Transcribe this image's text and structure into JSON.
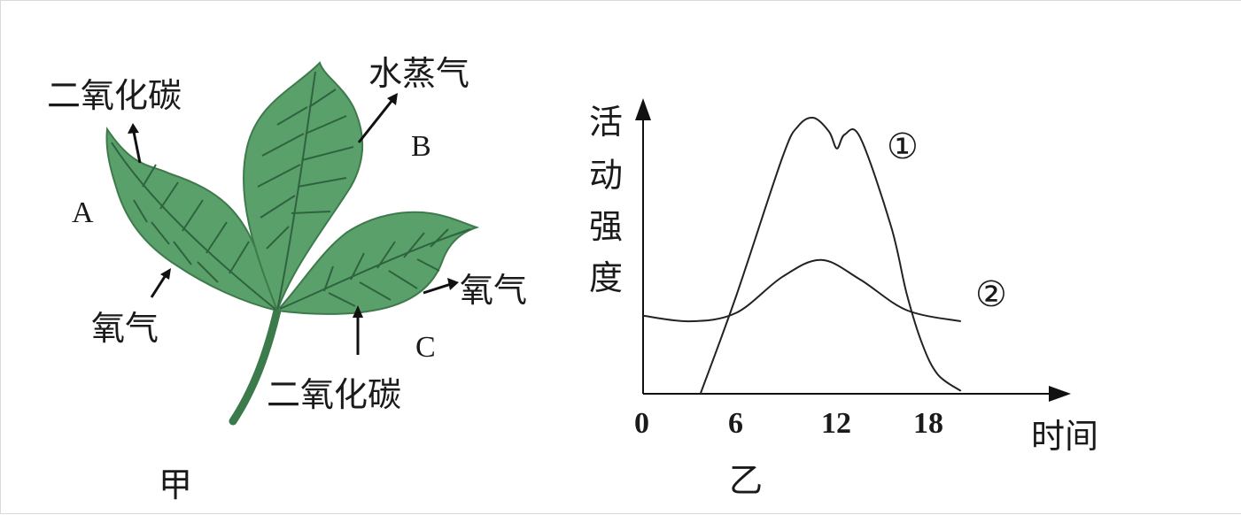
{
  "left_figure": {
    "label_co2_top": "二氧化碳",
    "label_A": "A",
    "label_o2_left": "氧气",
    "label_water_vapor": "水蒸气",
    "label_B": "B",
    "label_o2_right": "氧气",
    "label_C": "C",
    "label_co2_bottom": "二氧化碳",
    "caption": "甲"
  },
  "right_figure": {
    "caption": "乙",
    "ylabel_chars": [
      "活",
      "动",
      "强",
      "度"
    ],
    "xlabel": "时间",
    "curve_labels": [
      "①",
      "②"
    ],
    "xticks": [
      "0",
      "6",
      "12",
      "18"
    ]
  },
  "chart_data": {
    "type": "line",
    "title": "",
    "xlabel": "时间",
    "ylabel": "活动强度",
    "xlim": [
      0,
      22
    ],
    "ylim": [
      0,
      10
    ],
    "xticks": [
      0,
      6,
      12,
      18
    ],
    "grid": false,
    "series": [
      {
        "name": "①",
        "x": [
          3.7,
          6,
          9,
          10,
          11,
          12,
          12.5,
          13,
          14,
          16,
          17,
          18,
          19,
          20.5
        ],
        "values": [
          0,
          3.5,
          8.5,
          9.6,
          9.9,
          9.4,
          8.8,
          9.3,
          9.2,
          6.0,
          3.6,
          1.8,
          0.7,
          0.1
        ]
      },
      {
        "name": "②",
        "x": [
          0,
          3,
          6,
          9,
          11.5,
          14,
          17,
          20.5
        ],
        "values": [
          2.8,
          2.6,
          2.9,
          4.2,
          4.8,
          4.1,
          3.0,
          2.6
        ]
      }
    ]
  }
}
